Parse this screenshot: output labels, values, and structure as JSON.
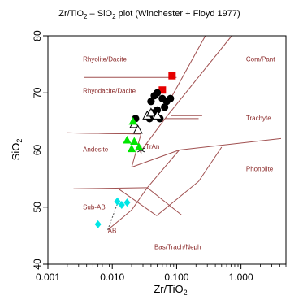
{
  "chart_data": {
    "type": "scatter",
    "title": "Zr/TiO2 – SiO2 plot (Winchester + Floyd 1977)",
    "title_parts": {
      "pre": "Zr/TiO",
      "sub": "2",
      "post": " –  SiO",
      "sub2": "2",
      "tail": " plot (Winchester + Floyd 1977)"
    },
    "xlabel": {
      "pre": "Zr/TiO",
      "sub": "2"
    },
    "ylabel": {
      "pre": "SiO",
      "sub": "2"
    },
    "x_scale": "log",
    "xlim": [
      0.001,
      5.0
    ],
    "ylim": [
      40,
      80
    ],
    "x_ticks": [
      0.001,
      0.01,
      0.1,
      1.0
    ],
    "x_tick_labels": [
      "0.001",
      "0.010",
      "0.100",
      "1.000"
    ],
    "y_ticks": [
      40,
      50,
      60,
      70,
      80
    ],
    "y_tick_labels": [
      "40",
      "50",
      "60",
      "70",
      "80"
    ],
    "grid": false,
    "colors": {
      "field_lines": "#a05050",
      "field_labels": "#8b2a2a",
      "red": "#e60000",
      "black": "#000000",
      "green": "#00e600",
      "cyan": "#00e6e6"
    },
    "fields": [
      {
        "label": "Rhyolite/Dacite",
        "x": 0.0035,
        "y": 75.5
      },
      {
        "label": "Rhyodacite/Dacite",
        "x": 0.0035,
        "y": 70.0
      },
      {
        "label": "Com/Pant",
        "x": 1.2,
        "y": 75.5
      },
      {
        "label": "Trachyte",
        "x": 1.2,
        "y": 65.2
      },
      {
        "label": "Andesite",
        "x": 0.0035,
        "y": 59.7
      },
      {
        "label": "TrAn",
        "x": 0.033,
        "y": 60.2
      },
      {
        "label": "Phonolite",
        "x": 1.2,
        "y": 56.3
      },
      {
        "label": "Sub-AB",
        "x": 0.0035,
        "y": 49.6
      },
      {
        "label": "AB",
        "x": 0.0085,
        "y": 45.5
      },
      {
        "label": "Bas/Trach/Neph",
        "x": 0.045,
        "y": 42.6
      }
    ],
    "boundaries": [
      [
        [
          0.0037,
          72.7
        ],
        [
          0.1,
          72.7
        ]
      ],
      [
        [
          0.078,
          68.7
        ],
        [
          0.28,
          80.0
        ]
      ],
      [
        [
          0.083,
          66.0
        ],
        [
          0.25,
          66.0
        ]
      ],
      [
        [
          0.066,
          65.5
        ],
        [
          0.72,
          80.0
        ]
      ],
      [
        [
          0.066,
          65.5
        ],
        [
          0.027,
          59.6
        ]
      ],
      [
        [
          0.066,
          65.5
        ],
        [
          0.22,
          65.5
        ]
      ],
      [
        [
          0.028,
          62.8
        ],
        [
          0.002,
          63.0
        ]
      ],
      [
        [
          0.002,
          63.0
        ],
        [
          0.028,
          62.8
        ]
      ],
      [
        [
          0.028,
          62.8
        ],
        [
          0.02,
          57.0
        ]
      ],
      [
        [
          0.11,
          60.0
        ],
        [
          0.02,
          57.0
        ]
      ],
      [
        [
          0.11,
          60.0
        ],
        [
          4.2,
          62.0
        ]
      ],
      [
        [
          0.11,
          60.0
        ],
        [
          0.035,
          53.4
        ]
      ],
      [
        [
          0.035,
          53.4
        ],
        [
          0.02,
          49.5
        ]
      ],
      [
        [
          0.035,
          53.4
        ],
        [
          0.12,
          48.6
        ]
      ],
      [
        [
          0.02,
          49.5
        ],
        [
          0.0085,
          46.0
        ]
      ],
      [
        [
          0.035,
          53.4
        ],
        [
          0.0025,
          53.2
        ]
      ],
      [
        [
          0.0125,
          53.2
        ],
        [
          0.049,
          48.5
        ]
      ],
      [
        [
          0.049,
          48.5
        ],
        [
          0.22,
          54.5
        ]
      ],
      [
        [
          0.22,
          54.5
        ],
        [
          0.5,
          60.5
        ]
      ]
    ],
    "series": [
      {
        "marker": "square",
        "color": "#e60000",
        "points": [
          [
            0.085,
            73.0
          ],
          [
            0.06,
            70.5
          ]
        ]
      },
      {
        "marker": "circle",
        "color": "#000000",
        "points": [
          [
            0.023,
            65.5
          ],
          [
            0.04,
            68.5
          ],
          [
            0.045,
            69.5
          ],
          [
            0.05,
            70.0
          ],
          [
            0.06,
            69.0
          ],
          [
            0.07,
            68.5
          ],
          [
            0.08,
            69.0
          ],
          [
            0.05,
            67.0
          ],
          [
            0.042,
            66.5
          ],
          [
            0.038,
            65.5
          ],
          [
            0.055,
            65.5
          ],
          [
            0.065,
            67.5
          ]
        ]
      },
      {
        "marker": "triangle-open",
        "color": "#000000",
        "points": [
          [
            0.022,
            64.5
          ],
          [
            0.025,
            63.5
          ],
          [
            0.035,
            66.0
          ],
          [
            0.04,
            66.5
          ],
          [
            0.05,
            66.0
          ]
        ]
      },
      {
        "marker": "asterisk",
        "color": "#000000",
        "points": [
          [
            0.028,
            60.0
          ]
        ]
      },
      {
        "marker": "triangle",
        "color": "#00e600",
        "points": [
          [
            0.017,
            61.7
          ],
          [
            0.022,
            61.5
          ],
          [
            0.02,
            60.2
          ],
          [
            0.026,
            60.5
          ],
          [
            0.021,
            65.0
          ]
        ]
      },
      {
        "marker": "diamond",
        "color": "#00e6e6",
        "points": [
          [
            0.012,
            51.0
          ],
          [
            0.014,
            50.4
          ],
          [
            0.017,
            50.8
          ],
          [
            0.006,
            47.0
          ]
        ]
      }
    ]
  }
}
